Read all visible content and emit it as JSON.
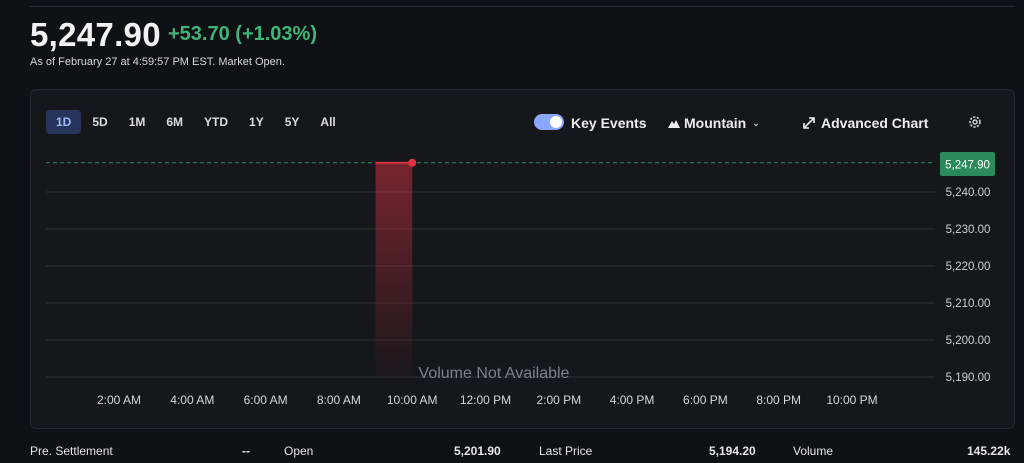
{
  "quote": {
    "price": "5,247.90",
    "change": "+53.70 (+1.03%)",
    "as_of": "As of February 27 at 4:59:57 PM EST. Market Open."
  },
  "toolbar": {
    "ranges": [
      "1D",
      "5D",
      "1M",
      "6M",
      "YTD",
      "1Y",
      "5Y",
      "All"
    ],
    "active_range": "1D",
    "key_events_label": "Key Events",
    "key_events_on": true,
    "chart_style_label": "Mountain",
    "advanced_chart_label": "Advanced Chart"
  },
  "colors": {
    "up": "#3fb57a",
    "down": "#e0323f",
    "accent": "#8aa7ff",
    "price_tag": "#2b8a5a"
  },
  "chart_data": {
    "type": "area",
    "y_ticks": [
      "5,240.00",
      "5,230.00",
      "5,220.00",
      "5,210.00",
      "5,200.00",
      "5,190.00"
    ],
    "x_ticks": [
      "2:00 AM",
      "4:00 AM",
      "6:00 AM",
      "8:00 AM",
      "10:00 AM",
      "12:00 PM",
      "2:00 PM",
      "4:00 PM",
      "6:00 PM",
      "8:00 PM",
      "10:00 PM"
    ],
    "current_price_label": "5,247.90",
    "volume_note": "Volume Not Available",
    "ylim": [
      5187.5,
      5250
    ],
    "series": [
      {
        "x": [
          "9:00 AM",
          "10:00 AM"
        ],
        "values": [
          5247.9,
          5247.9
        ]
      }
    ],
    "grid": true
  },
  "stats": {
    "pre_settlement_label": "Pre. Settlement",
    "pre_settlement_value": "--",
    "open_label": "Open",
    "open_value": "5,201.90",
    "last_price_label": "Last Price",
    "last_price_value": "5,194.20",
    "volume_label": "Volume",
    "volume_value": "145.22k"
  }
}
